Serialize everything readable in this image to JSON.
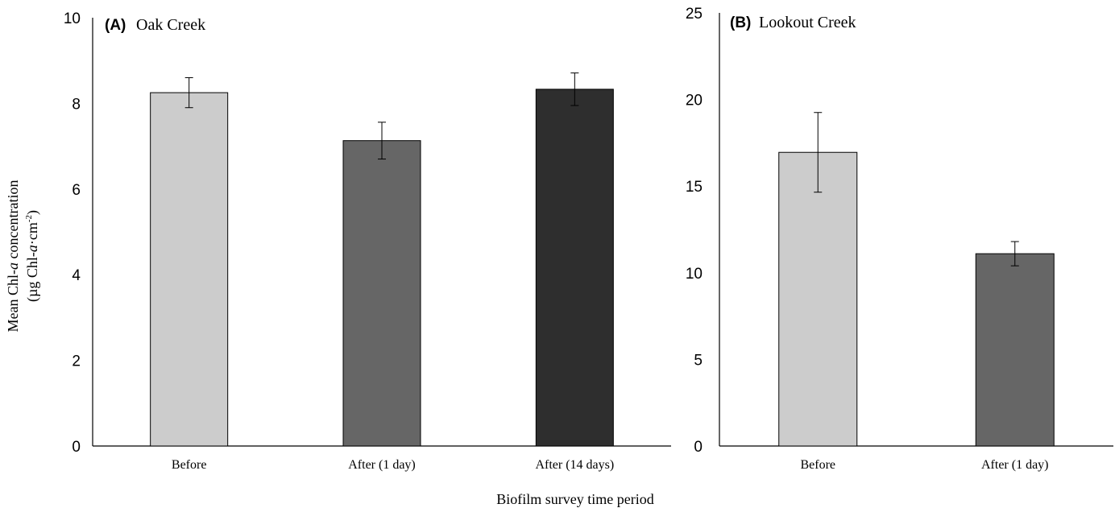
{
  "chart_data": [
    {
      "type": "bar",
      "panel_letter": "(A)",
      "panel_title": "Oak Creek",
      "categories": [
        "Before",
        "After (1 day)",
        "After (14 days)"
      ],
      "values": [
        8.25,
        7.13,
        8.33
      ],
      "errors": [
        0.35,
        0.43,
        0.38
      ],
      "colors": [
        "#cccccc",
        "#666666",
        "#2e2e2e"
      ],
      "yticks": [
        "0",
        "2",
        "4",
        "6",
        "8",
        "10"
      ],
      "ylim": [
        0,
        10
      ]
    },
    {
      "type": "bar",
      "panel_letter": "(B)",
      "panel_title": "Lookout Creek",
      "categories": [
        "Before",
        "After (1 day)"
      ],
      "values": [
        16.95,
        11.1
      ],
      "errors": [
        2.3,
        0.7
      ],
      "colors": [
        "#cccccc",
        "#666666"
      ],
      "yticks": [
        "0",
        "5",
        "10",
        "15",
        "20",
        "25"
      ],
      "ylim": [
        0,
        25
      ]
    }
  ],
  "ylabel": {
    "line1_prefix": "Mean Chl-",
    "line1_italic": "a",
    "line1_suffix": " concentration",
    "line2_prefix": "(µg Chl-",
    "line2_italic": "a",
    "line2_mid": "·cm",
    "line2_sup": "-2",
    "line2_suffix": ")"
  },
  "xlabel": "Biofilm survey time period"
}
